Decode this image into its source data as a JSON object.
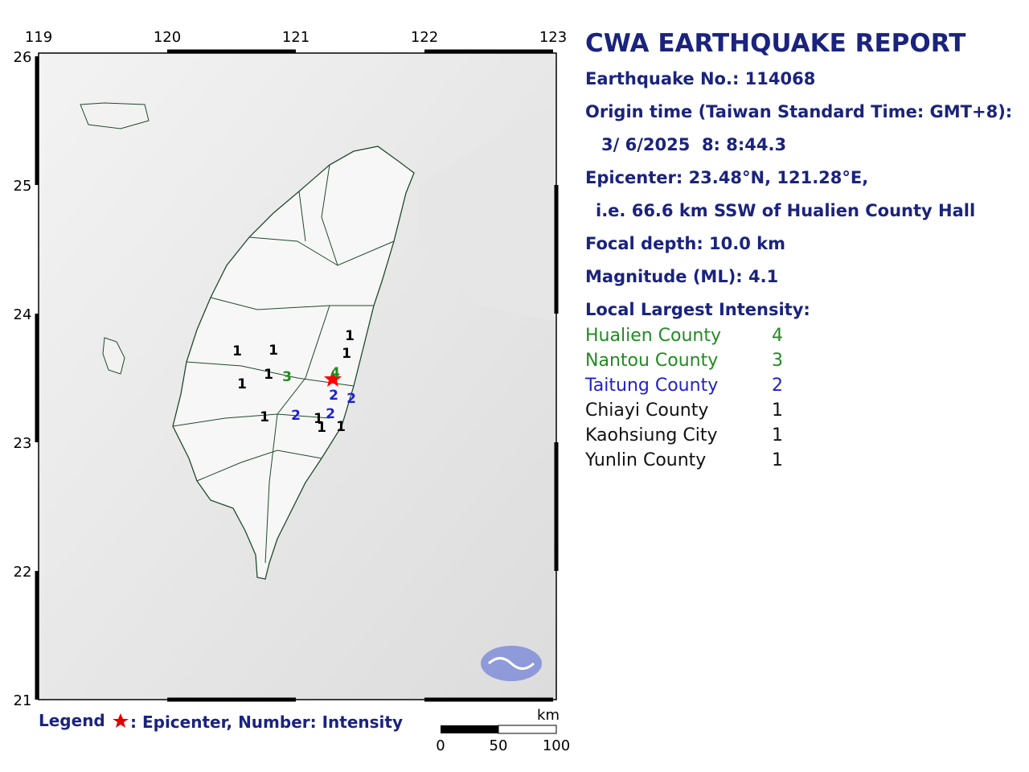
{
  "map": {
    "lon_ticks": [
      "119",
      "120",
      "121",
      "122",
      "123"
    ],
    "lat_ticks": [
      "26",
      "25",
      "24",
      "23",
      "22",
      "21"
    ],
    "intensity_marks": [
      {
        "label": "1",
        "color": "#000000"
      },
      {
        "label": "1",
        "color": "#000000"
      },
      {
        "label": "1",
        "color": "#000000"
      },
      {
        "label": "1",
        "color": "#000000"
      },
      {
        "label": "1",
        "color": "#000000"
      },
      {
        "label": "3",
        "color": "#228b22"
      },
      {
        "label": "4",
        "color": "#228b22"
      },
      {
        "label": "1",
        "color": "#000000"
      },
      {
        "label": "2",
        "color": "#1f1fd0"
      },
      {
        "label": "2",
        "color": "#1f1fd0"
      },
      {
        "label": "1",
        "color": "#000000"
      },
      {
        "label": "2",
        "color": "#1f1fd0"
      },
      {
        "label": "2",
        "color": "#1f1fd0"
      },
      {
        "label": "1",
        "color": "#000000"
      },
      {
        "label": "1",
        "color": "#000000"
      },
      {
        "label": "1",
        "color": "#000000"
      }
    ],
    "scale": {
      "unit": "km",
      "ticks": [
        "0",
        "50",
        "100"
      ]
    }
  },
  "legend": {
    "title": "Legend",
    "text": ": Epicenter, Number: Intensity"
  },
  "report": {
    "title": "CWA EARTHQUAKE REPORT",
    "earthquake_no": "Earthquake No.: 114068",
    "origin_label": "Origin time (Taiwan Standard Time: GMT+8):",
    "origin_time": "3/ 6/2025  8: 8:44.3",
    "epicenter": "Epicenter: 23.48°N, 121.28°E,",
    "epicenter_ref": "i.e. 66.6 km SSW of Hualien County Hall",
    "depth": "Focal depth: 10.0 km",
    "magnitude": "Magnitude (ML): 4.1",
    "intensity_title": "Local Largest Intensity:"
  },
  "intensity_table": [
    {
      "region": "Hualien County",
      "value": "4",
      "color": "#228b22"
    },
    {
      "region": "Nantou County",
      "value": "3",
      "color": "#228b22"
    },
    {
      "region": "Taitung County",
      "value": "2",
      "color": "#1f1fd0"
    },
    {
      "region": "Chiayi County",
      "value": "1",
      "color": "#111111"
    },
    {
      "region": "Kaohsiung City",
      "value": "1",
      "color": "#111111"
    },
    {
      "region": "Yunlin County",
      "value": "1",
      "color": "#111111"
    }
  ]
}
